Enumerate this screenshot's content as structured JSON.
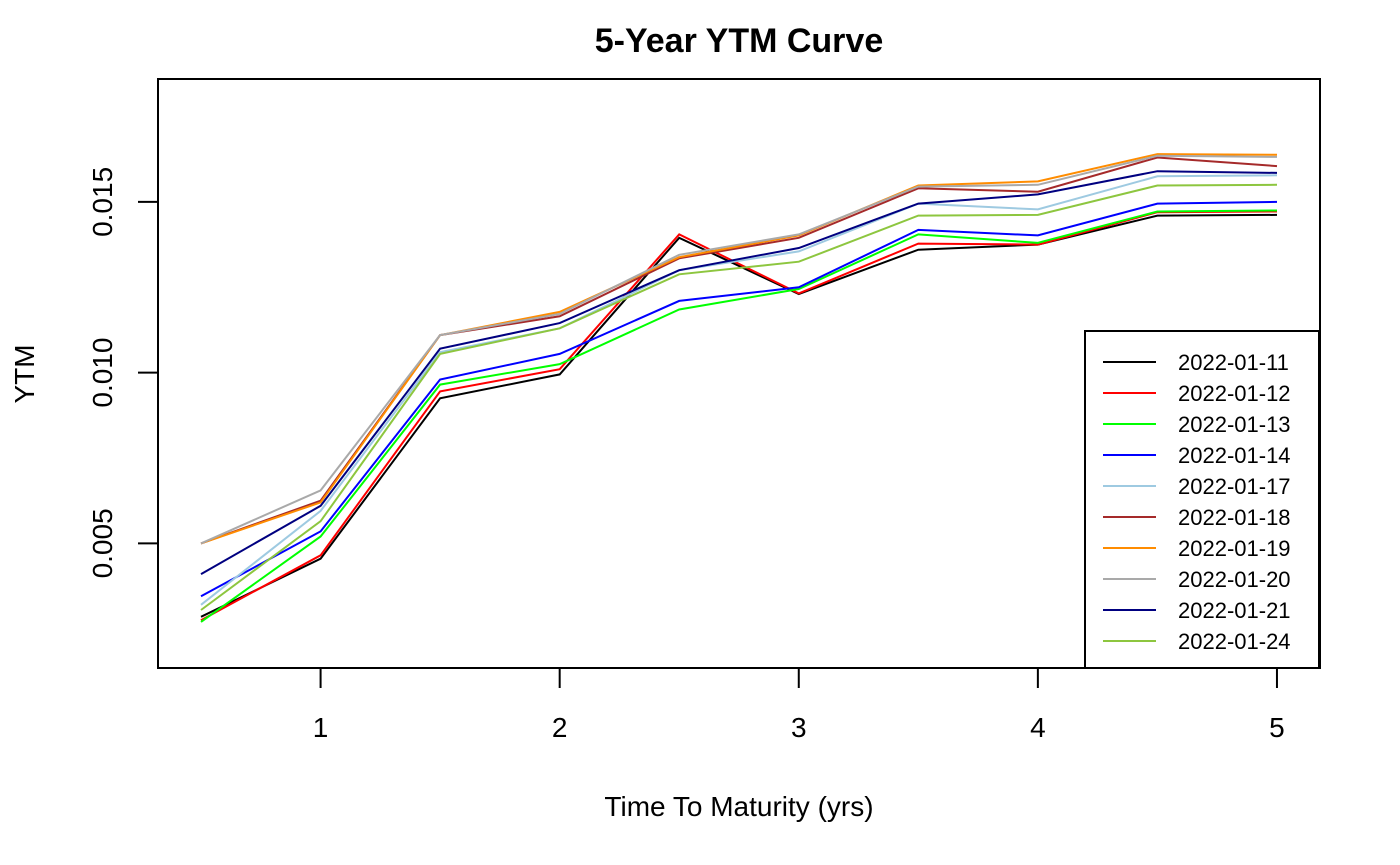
{
  "chart_data": {
    "type": "line",
    "title": "5-Year YTM Curve",
    "xlabel": "Time To Maturity (yrs)",
    "ylabel": "YTM",
    "x": [
      0.5,
      1,
      1.5,
      2,
      2.5,
      3,
      3.5,
      4,
      4.5,
      5
    ],
    "xlim": [
      0.32,
      5.18
    ],
    "ylim": [
      0.00135,
      0.0186
    ],
    "xticks": [
      1,
      2,
      3,
      4,
      5
    ],
    "xtick_labels": [
      "1",
      "2",
      "3",
      "4",
      "5"
    ],
    "yticks": [
      0.005,
      0.01,
      0.015
    ],
    "ytick_labels": [
      "0.005",
      "0.010",
      "0.015"
    ],
    "legend_position": "bottom-right",
    "grid": false,
    "series": [
      {
        "name": "2022-01-11",
        "color": "#000000",
        "values": [
          0.00285,
          0.00455,
          0.00925,
          0.00995,
          0.01395,
          0.0123,
          0.0136,
          0.01375,
          0.0146,
          0.01462
        ]
      },
      {
        "name": "2022-01-12",
        "color": "#ff0000",
        "values": [
          0.00275,
          0.00465,
          0.00945,
          0.0101,
          0.01405,
          0.01232,
          0.01378,
          0.01375,
          0.0147,
          0.01472
        ]
      },
      {
        "name": "2022-01-13",
        "color": "#00ff00",
        "values": [
          0.0027,
          0.0052,
          0.00965,
          0.01025,
          0.01185,
          0.01245,
          0.01405,
          0.0138,
          0.01472,
          0.01475
        ]
      },
      {
        "name": "2022-01-14",
        "color": "#0000ff",
        "values": [
          0.00345,
          0.00535,
          0.0098,
          0.01055,
          0.0121,
          0.0125,
          0.01418,
          0.01402,
          0.01495,
          0.015
        ]
      },
      {
        "name": "2022-01-17",
        "color": "#9ecae1",
        "values": [
          0.0032,
          0.00595,
          0.0106,
          0.0113,
          0.013,
          0.01355,
          0.01495,
          0.01478,
          0.01575,
          0.01578
        ]
      },
      {
        "name": "2022-01-18",
        "color": "#a52a2a",
        "values": [
          0.005,
          0.00625,
          0.0111,
          0.01165,
          0.01335,
          0.01395,
          0.0154,
          0.0153,
          0.0163,
          0.01605
        ]
      },
      {
        "name": "2022-01-19",
        "color": "#ff8c00",
        "values": [
          0.005,
          0.0062,
          0.0111,
          0.01178,
          0.01338,
          0.01402,
          0.01548,
          0.0156,
          0.0164,
          0.01638
        ]
      },
      {
        "name": "2022-01-20",
        "color": "#a9a9a9",
        "values": [
          0.005,
          0.00655,
          0.0111,
          0.01172,
          0.01345,
          0.01405,
          0.01545,
          0.0155,
          0.01635,
          0.01632
        ]
      },
      {
        "name": "2022-01-21",
        "color": "#000080",
        "values": [
          0.0041,
          0.0061,
          0.0107,
          0.01145,
          0.013,
          0.01365,
          0.01495,
          0.01522,
          0.0159,
          0.01585
        ]
      },
      {
        "name": "2022-01-24",
        "color": "#8dc63f",
        "values": [
          0.00305,
          0.00565,
          0.01055,
          0.0113,
          0.01288,
          0.01325,
          0.0146,
          0.01462,
          0.01548,
          0.0155
        ]
      }
    ]
  }
}
